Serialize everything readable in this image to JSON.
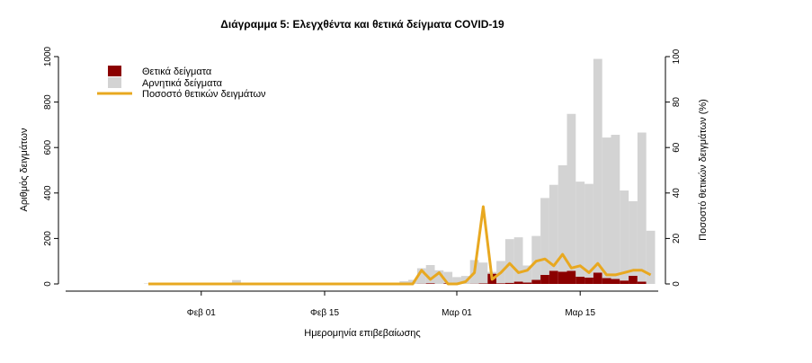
{
  "chart_data": {
    "type": "bar",
    "title": "Διάγραμμα 5: Ελεγχθέντα και θετικά δείγματα COVID-19",
    "xlabel": "Ημερομηνία επιβεβαίωσης",
    "ylabel": "Αριθμός δειγμάτων",
    "y2label": "Ποσοστό θετικών δειγμάτων (%)",
    "ylim": [
      0,
      1000
    ],
    "y2lim": [
      0,
      100
    ],
    "yticks": [
      0,
      200,
      400,
      600,
      800,
      1000
    ],
    "y2ticks": [
      0,
      20,
      40,
      60,
      80,
      100
    ],
    "xticks": [
      "Φεβ 01",
      "Φεβ 15",
      "Μαρ 01",
      "Μαρ 15"
    ],
    "legend_position": "top-left",
    "grid": false,
    "colors": {
      "positive": "#8b0000",
      "negative": "#d3d3d3",
      "pct": "#e8a820"
    },
    "legend": [
      {
        "label": "Θετικά δείγματα",
        "kind": "bar",
        "color": "#8b0000"
      },
      {
        "label": "Αρνητικά δείγματα",
        "kind": "bar",
        "color": "#d3d3d3"
      },
      {
        "label": "Ποσοστό θετικών δειγμάτων",
        "kind": "line",
        "color": "#e8a820"
      }
    ],
    "x": [
      "2020-01-26",
      "2020-01-27",
      "2020-01-28",
      "2020-01-29",
      "2020-01-30",
      "2020-01-31",
      "2020-02-01",
      "2020-02-02",
      "2020-02-03",
      "2020-02-04",
      "2020-02-05",
      "2020-02-06",
      "2020-02-07",
      "2020-02-08",
      "2020-02-09",
      "2020-02-10",
      "2020-02-11",
      "2020-02-12",
      "2020-02-13",
      "2020-02-14",
      "2020-02-15",
      "2020-02-16",
      "2020-02-17",
      "2020-02-18",
      "2020-02-19",
      "2020-02-20",
      "2020-02-21",
      "2020-02-22",
      "2020-02-23",
      "2020-02-24",
      "2020-02-25",
      "2020-02-26",
      "2020-02-27",
      "2020-02-28",
      "2020-02-29",
      "2020-03-01",
      "2020-03-02",
      "2020-03-03",
      "2020-03-04",
      "2020-03-05",
      "2020-03-06",
      "2020-03-07",
      "2020-03-08",
      "2020-03-09",
      "2020-03-10",
      "2020-03-11",
      "2020-03-12",
      "2020-03-13",
      "2020-03-14",
      "2020-03-15",
      "2020-03-16",
      "2020-03-17",
      "2020-03-18",
      "2020-03-19",
      "2020-03-20",
      "2020-03-21",
      "2020-03-22",
      "2020-03-23"
    ],
    "series": [
      {
        "name": "Θετικά δείγματα",
        "kind": "bar",
        "values": [
          0,
          0,
          0,
          0,
          0,
          0,
          0,
          0,
          0,
          0,
          0,
          0,
          0,
          0,
          0,
          0,
          0,
          0,
          0,
          0,
          0,
          0,
          0,
          0,
          0,
          0,
          0,
          0,
          0,
          0,
          0,
          1,
          3,
          0,
          3,
          0,
          0,
          1,
          2,
          45,
          3,
          5,
          10,
          6,
          18,
          40,
          58,
          54,
          58,
          32,
          28,
          50,
          26,
          22,
          15,
          36,
          10,
          0
        ]
      },
      {
        "name": "Αρνητικά δείγματα",
        "kind": "bar",
        "values": [
          2,
          3,
          2,
          1,
          4,
          2,
          2,
          1,
          1,
          3,
          17,
          4,
          5,
          3,
          2,
          1,
          2,
          3,
          4,
          2,
          3,
          2,
          1,
          4,
          3,
          2,
          3,
          5,
          4,
          12,
          18,
          68,
          80,
          60,
          50,
          30,
          35,
          104,
          92,
          8,
          98,
          192,
          195,
          75,
          193,
          338,
          378,
          468,
          690,
          418,
          412,
          940,
          618,
          634,
          396,
          328,
          656,
          234
        ]
      },
      {
        "name": "Ποσοστό θετικών δειγμάτων",
        "kind": "line",
        "values": [
          0,
          0,
          0,
          0,
          0,
          0,
          0,
          0,
          0,
          0,
          0,
          0,
          0,
          0,
          0,
          0,
          0,
          0,
          0,
          0,
          0,
          0,
          0,
          0,
          0,
          0,
          0,
          0,
          0,
          0,
          0,
          6,
          2,
          5,
          0,
          0,
          1,
          5,
          34,
          2,
          5,
          9,
          5,
          6,
          10,
          11,
          8,
          13,
          7,
          8,
          5,
          9,
          4,
          4,
          5,
          6,
          6,
          4
        ]
      }
    ]
  }
}
